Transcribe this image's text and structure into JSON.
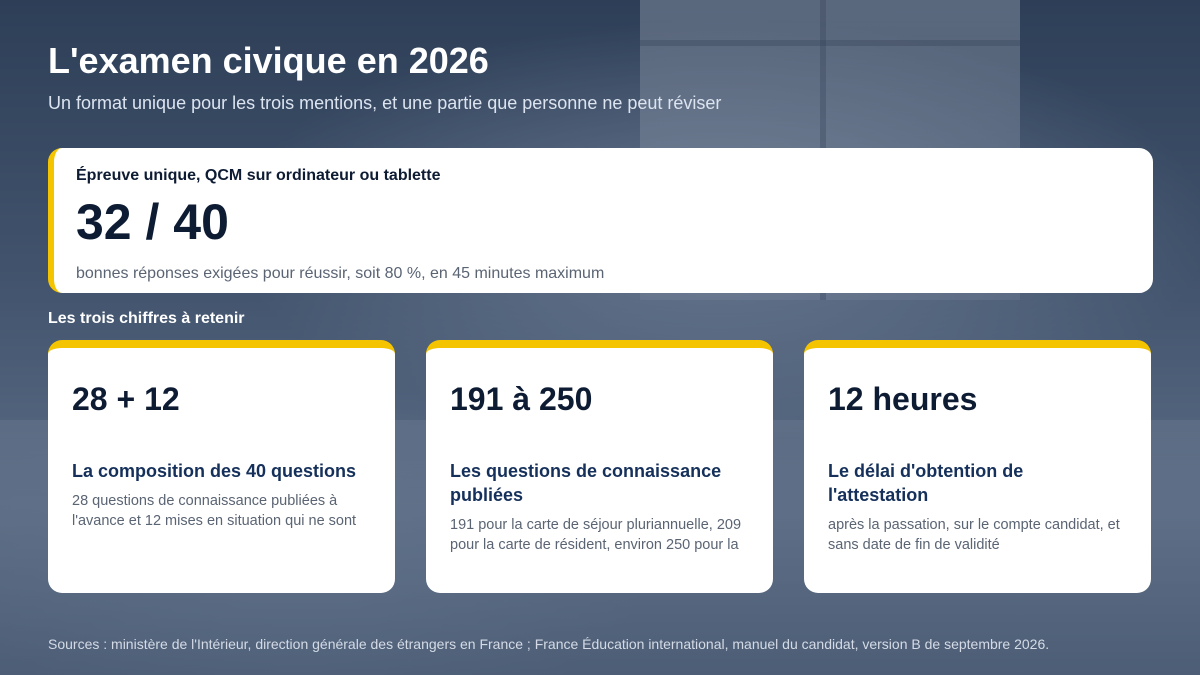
{
  "header": {
    "title": "L'examen civique en 2026",
    "subtitle": "Un format unique pour les trois mentions, et une partie que personne ne peut réviser"
  },
  "hero": {
    "label": "Épreuve unique, QCM sur ordinateur ou tablette",
    "value": "32 / 40",
    "description": "bonnes réponses exigées pour réussir, soit 80 %, en 45 minutes maximum",
    "accent_color": "#f5c400"
  },
  "section": {
    "label": "Les trois chiffres à retenir"
  },
  "cards": [
    {
      "value": "28 + 12",
      "heading": "La composition des 40 questions",
      "description": "28 questions de connaissance publiées à l'avance et 12 mises en situation qui ne sont"
    },
    {
      "value": "191 à 250",
      "heading": "Les questions de connaissance publiées",
      "description": "191 pour la carte de séjour pluriannuelle, 209 pour la carte de résident, environ 250 pour la"
    },
    {
      "value": "12 heures",
      "heading": "Le délai d'obtention de l'attestation",
      "description": "après la passation, sur le compte candidat, et sans date de fin de validité"
    }
  ],
  "footer": {
    "sources": "Sources : ministère de l'Intérieur, direction générale des étrangers en France ; France Éducation international, manuel du candidat, version B de septembre 2026."
  }
}
